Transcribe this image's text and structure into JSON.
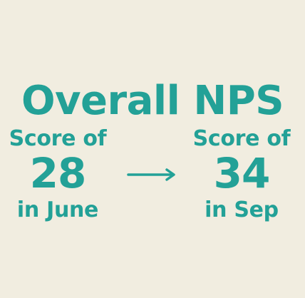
{
  "colors": {
    "background": "#f1ede0",
    "accent": "#23a197"
  },
  "title": "Overall NPS",
  "before": {
    "label": "Score of",
    "value": "28",
    "period": "in June"
  },
  "after": {
    "label": "Score of",
    "value": "34",
    "period": "in Sep"
  },
  "arrow_icon": "arrow-right-icon"
}
